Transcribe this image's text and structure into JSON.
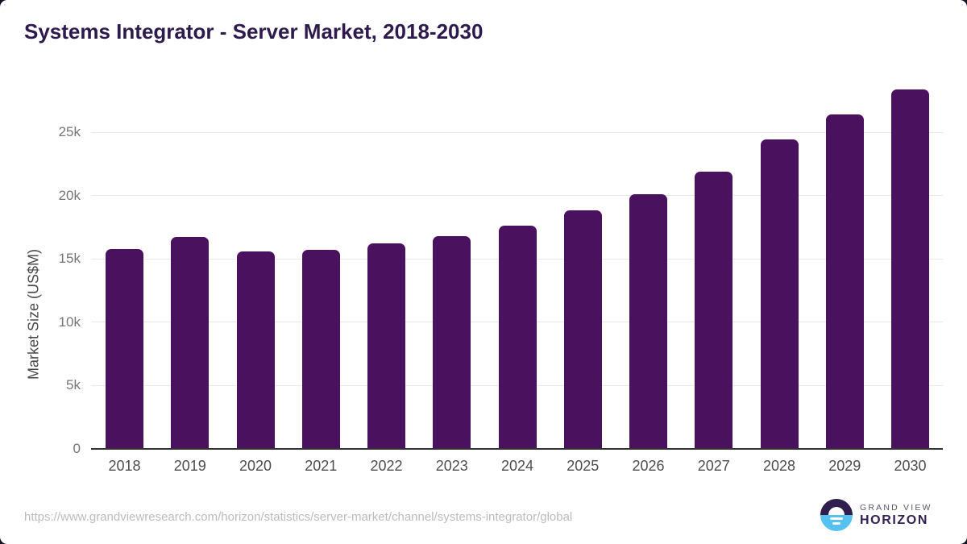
{
  "chart_data": {
    "type": "bar",
    "title": "Systems Integrator - Server Market, 2018-2030",
    "ylabel": "Market Size (US$M)",
    "xlabel": "",
    "categories": [
      "2018",
      "2019",
      "2020",
      "2021",
      "2022",
      "2023",
      "2024",
      "2025",
      "2026",
      "2027",
      "2028",
      "2029",
      "2030"
    ],
    "values": [
      15800,
      16700,
      15600,
      15700,
      16200,
      16800,
      17600,
      18800,
      20100,
      21900,
      24400,
      26400,
      28400
    ],
    "yticks": [
      {
        "label": "0",
        "value": 0
      },
      {
        "label": "5k",
        "value": 5000
      },
      {
        "label": "10k",
        "value": 10000
      },
      {
        "label": "15k",
        "value": 15000
      },
      {
        "label": "20k",
        "value": 20000
      },
      {
        "label": "25k",
        "value": 25000
      }
    ],
    "ylim": [
      0,
      25000
    ],
    "grid": "horizontal",
    "legend": "none",
    "bar_color": "#4a115e"
  },
  "footer": {
    "source_url": "https://www.grandviewresearch.com/horizon/statistics/server-market/channel/systems-integrator/global",
    "logo": {
      "line1": "GRAND VIEW",
      "line2": "HORIZON"
    }
  },
  "colors": {
    "bar": "#4a115e",
    "title_text": "#2e1a4d",
    "axis_line": "#333333",
    "gridline": "#e9e9e9",
    "y_tick_text": "#757575",
    "y_axis_title_text": "#4a4a4a",
    "x_tick_text": "#4d4d4d",
    "url_text": "#bcbcbc",
    "logo_dark_purple": "#2f1e4e",
    "logo_light_blue": "#56c1f0",
    "background_behind_card": "#15101f"
  }
}
